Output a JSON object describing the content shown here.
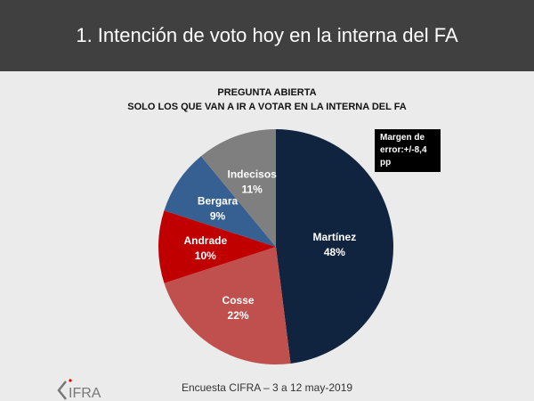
{
  "header": {
    "title": "1. Intención de voto hoy en la interna del FA"
  },
  "chart_data": {
    "type": "pie",
    "title": [
      "PREGUNTA ABIERTA",
      "SOLO LOS QUE VAN A IR A VOTAR EN LA INTERNA DEL  FA"
    ],
    "categories": [
      "Martínez",
      "Cosse",
      "Andrade",
      "Bergara",
      "Indecisos"
    ],
    "values": [
      48,
      22,
      10,
      9,
      11
    ],
    "labels": [
      "48%",
      "22%",
      "10%",
      "9%",
      "11%"
    ],
    "colors": [
      "#10233f",
      "#c0504d",
      "#c00000",
      "#376092",
      "#7f7f7f"
    ],
    "annotation": [
      "Margen de",
      "error:+/-8,4 pp"
    ]
  },
  "footer": {
    "source": "Encuesta CIFRA – 3 a 12 may-2019",
    "logo": "CIFRA"
  }
}
